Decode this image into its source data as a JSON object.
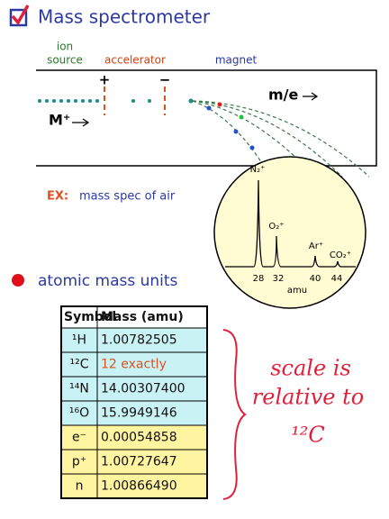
{
  "title": "Mass spectrometer",
  "diagram": {
    "ion_source": [
      "ion",
      "source"
    ],
    "accelerator": "accelerator",
    "magnet": "magnet",
    "plus": "+",
    "minus": "−",
    "m_over_e": "m/e",
    "ion": "M⁺"
  },
  "example": {
    "label": "EX:",
    "text": "mass spec of air"
  },
  "spectrum": {
    "peaks": [
      "N₂⁺",
      "O₂⁺",
      "Ar⁺",
      "CO₂⁺"
    ],
    "ticks": [
      "28",
      "32",
      "40",
      "44"
    ],
    "axis_label": "amu"
  },
  "bullet": "atomic mass units",
  "table": {
    "header": [
      "Symbol",
      "Mass (amu)"
    ],
    "rows": [
      [
        "¹H",
        "1.00782505"
      ],
      [
        "¹²C",
        "12 exactly"
      ],
      [
        "¹⁴N",
        "14.00307400"
      ],
      [
        "¹⁶O",
        "15.9949146"
      ],
      [
        "e⁻",
        "0.00054858"
      ],
      [
        "p⁺",
        "1.00727647"
      ],
      [
        "n",
        "1.00866490"
      ]
    ]
  },
  "note": [
    "scale is",
    "relative to",
    "¹²C"
  ]
}
